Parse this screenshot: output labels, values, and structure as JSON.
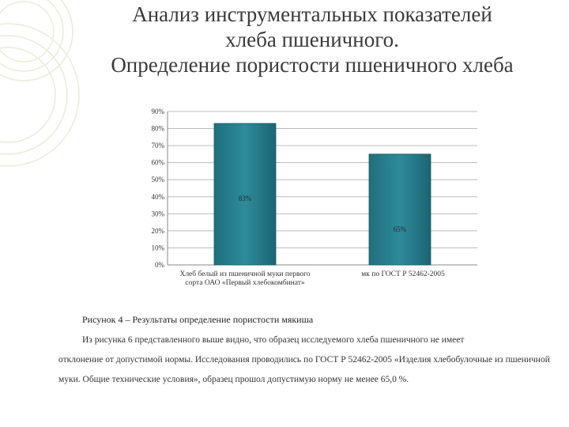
{
  "title": {
    "line1": "Анализ инструментальных показателей",
    "line2": "хлеба пшеничного.",
    "line3": "Определение пористости пшеничного хлеба"
  },
  "chart_data": {
    "type": "bar",
    "categories": [
      "Хлеб белый из пшеничной муки первого сорта ОАО «Первый хлебокомбинат»",
      "мк по ГОСТ Р 52462-2005"
    ],
    "values": [
      83,
      65
    ],
    "data_labels": [
      "83%",
      "65%"
    ],
    "y_ticks": [
      "0%",
      "10%",
      "20%",
      "30%",
      "40%",
      "50%",
      "60%",
      "70%",
      "80%",
      "90%"
    ],
    "ylim": [
      0,
      90
    ],
    "grid": true,
    "bar_color": "#2e8b9a"
  },
  "caption": "Рисунок 4 – Результаты определение пористости мякиша",
  "paragraph": {
    "first": "Из рисунка 6 представленного выше видно, что образец исследуемого хлеба пшеничного не имеет",
    "rest": "отклонение от допустимой нормы. Исследования проводились по ГОСТ Р 52462-2005 «Изделия хлебобулочные из пшеничной муки. Общие технические условия», образец прошол допустимую норму не менее 65,0 %."
  }
}
